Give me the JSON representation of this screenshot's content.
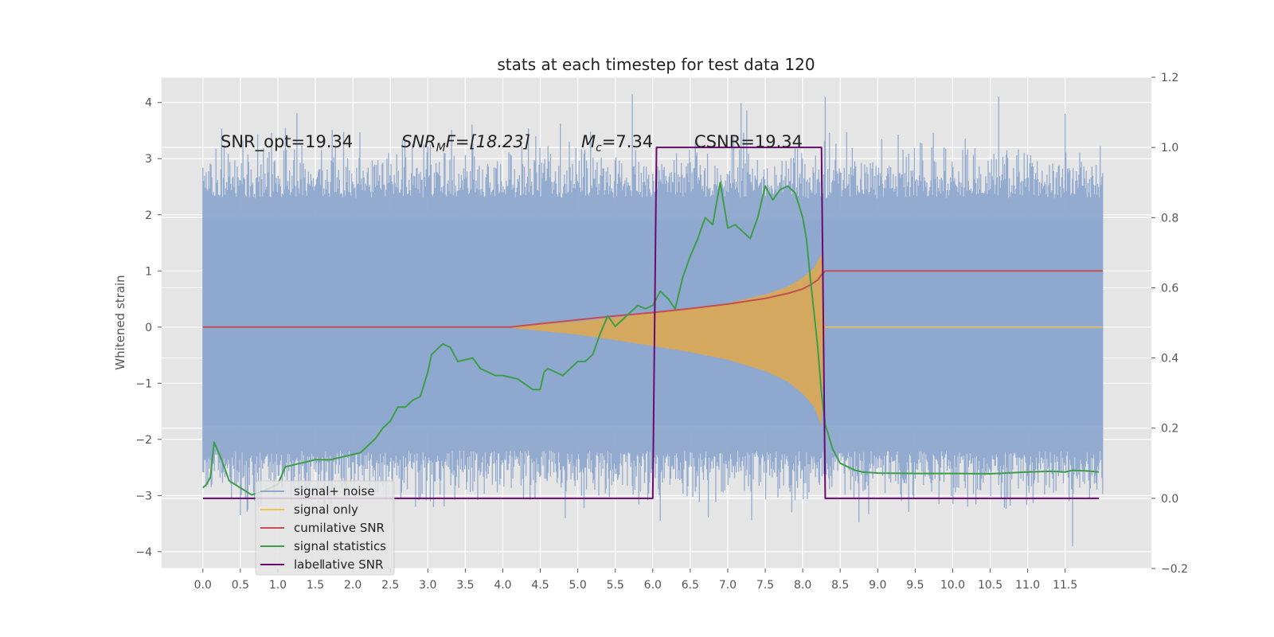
{
  "chart_data": {
    "type": "line",
    "title": "stats at each timestep for test data 120",
    "ylabel": "Whitened strain",
    "xlim": [
      -0.55,
      12.65
    ],
    "ylim": [
      -4.3,
      4.45
    ],
    "ylim_right": [
      -0.2,
      1.2
    ],
    "grid": true,
    "legend_position": "lower-left",
    "x_ticks": [
      "0.0",
      "0.5",
      "1.0",
      "1.5",
      "2.0",
      "2.5",
      "3.0",
      "3.5",
      "4.0",
      "4.5",
      "5.0",
      "5.5",
      "6.0",
      "6.5",
      "7.0",
      "7.5",
      "8.0",
      "8.5",
      "9.0",
      "9.5",
      "10.0",
      "10.5",
      "11.0",
      "11.5"
    ],
    "y_ticks": [
      "−4",
      "−3",
      "−2",
      "−1",
      "0",
      "1",
      "2",
      "3",
      "4"
    ],
    "y_ticks_right": [
      "−0.2",
      "0.0",
      "0.2",
      "0.4",
      "0.6",
      "0.8",
      "1.0",
      "1.2"
    ],
    "annotations": {
      "snr_opt": "SNR_opt=19.34",
      "snr_mf_base": "SNR",
      "snr_mf_sub": "M",
      "snr_mf_rest": "F=[18.23]",
      "mc_base": "M",
      "mc_sub": "c",
      "mc_rest": "=7.34",
      "csnr": "CSNR=19.34"
    },
    "legend": [
      {
        "label": "signal+ noise",
        "color": "#8fa8cf"
      },
      {
        "label": "signal only",
        "color": "#f2c14e"
      },
      {
        "label": "cumilative SNR",
        "color": "#c44e52"
      },
      {
        "label": "signal statistics",
        "color": "#3d9e4a"
      },
      {
        "label": "label",
        "color": "#6a0a6e"
      }
    ],
    "legend_ghost_text": "lative SNR",
    "series": [
      {
        "name": "signal+ noise",
        "axis": "left",
        "style": "noise-band",
        "color": "#8fa8cf",
        "x_range": [
          0.0,
          12.0
        ],
        "typical_range": [
          -2.2,
          2.3
        ],
        "peaks": [
          [
            8.3,
            4.1
          ],
          [
            11.5,
            3.8
          ],
          [
            11.6,
            -3.9
          ],
          [
            6.1,
            -3.45
          ],
          [
            0.5,
            -3.35
          ],
          [
            1.1,
            3.55
          ]
        ]
      },
      {
        "name": "signal only",
        "axis": "left",
        "style": "chirp-envelope",
        "color": "#e0a84a",
        "x": [
          4.0,
          4.5,
          5.0,
          5.5,
          6.0,
          6.5,
          7.0,
          7.5,
          7.8,
          8.0,
          8.15,
          8.25,
          8.3,
          12.0
        ],
        "amplitude": [
          0.0,
          0.05,
          0.1,
          0.17,
          0.25,
          0.33,
          0.43,
          0.58,
          0.72,
          0.88,
          1.05,
          1.3,
          0.0,
          0.0
        ]
      },
      {
        "name": "cumilative SNR",
        "axis": "left",
        "color": "#c44e52",
        "x": [
          0.0,
          4.1,
          4.5,
          5.0,
          5.5,
          6.0,
          6.5,
          7.0,
          7.5,
          7.8,
          8.0,
          8.1,
          8.2,
          8.25,
          8.3,
          12.0
        ],
        "y": [
          0.0,
          0.0,
          0.06,
          0.13,
          0.2,
          0.26,
          0.33,
          0.41,
          0.51,
          0.6,
          0.68,
          0.75,
          0.84,
          0.93,
          1.0,
          1.0
        ]
      },
      {
        "name": "signal statistics",
        "axis": "right",
        "color": "#3d9e4a",
        "x": [
          0.0,
          0.05,
          0.1,
          0.15,
          0.25,
          0.35,
          0.5,
          0.65,
          0.8,
          1.0,
          1.1,
          1.3,
          1.5,
          1.7,
          1.9,
          2.1,
          2.3,
          2.4,
          2.5,
          2.6,
          2.7,
          2.8,
          2.9,
          3.0,
          3.05,
          3.1,
          3.2,
          3.3,
          3.4,
          3.6,
          3.7,
          3.8,
          3.9,
          4.0,
          4.2,
          4.4,
          4.5,
          4.55,
          4.6,
          4.7,
          4.8,
          4.9,
          5.0,
          5.1,
          5.2,
          5.3,
          5.4,
          5.5,
          5.6,
          5.7,
          5.8,
          5.9,
          6.0,
          6.1,
          6.2,
          6.3,
          6.4,
          6.5,
          6.6,
          6.7,
          6.8,
          6.9,
          7.0,
          7.1,
          7.2,
          7.3,
          7.4,
          7.5,
          7.6,
          7.7,
          7.8,
          7.9,
          8.0,
          8.05,
          8.1,
          8.15,
          8.2,
          8.25,
          8.3,
          8.4,
          8.5,
          8.6,
          8.7,
          8.8,
          9.0,
          9.5,
          10.0,
          10.5,
          11.0,
          11.3,
          11.5,
          11.6,
          11.8,
          11.95
        ],
        "y": [
          0.03,
          0.04,
          0.06,
          0.16,
          0.11,
          0.05,
          0.03,
          0.01,
          0.02,
          0.04,
          0.09,
          0.1,
          0.11,
          0.11,
          0.12,
          0.13,
          0.17,
          0.2,
          0.22,
          0.26,
          0.26,
          0.28,
          0.29,
          0.36,
          0.41,
          0.42,
          0.44,
          0.43,
          0.39,
          0.4,
          0.37,
          0.36,
          0.35,
          0.35,
          0.34,
          0.31,
          0.31,
          0.36,
          0.37,
          0.36,
          0.35,
          0.37,
          0.39,
          0.39,
          0.41,
          0.47,
          0.52,
          0.49,
          0.51,
          0.53,
          0.55,
          0.54,
          0.55,
          0.59,
          0.57,
          0.54,
          0.63,
          0.69,
          0.74,
          0.8,
          0.78,
          0.9,
          0.77,
          0.78,
          0.76,
          0.74,
          0.8,
          0.89,
          0.85,
          0.88,
          0.89,
          0.87,
          0.8,
          0.74,
          0.63,
          0.53,
          0.43,
          0.3,
          0.21,
          0.14,
          0.1,
          0.09,
          0.08,
          0.075,
          0.072,
          0.071,
          0.071,
          0.07,
          0.075,
          0.077,
          0.075,
          0.08,
          0.078,
          0.075
        ]
      },
      {
        "name": "label",
        "axis": "right",
        "color": "#6a0a6e",
        "x": [
          0.0,
          6.0,
          6.05,
          8.25,
          8.3,
          11.95
        ],
        "y": [
          0.0,
          0.0,
          1.0,
          1.0,
          0.0,
          0.0
        ]
      }
    ]
  }
}
